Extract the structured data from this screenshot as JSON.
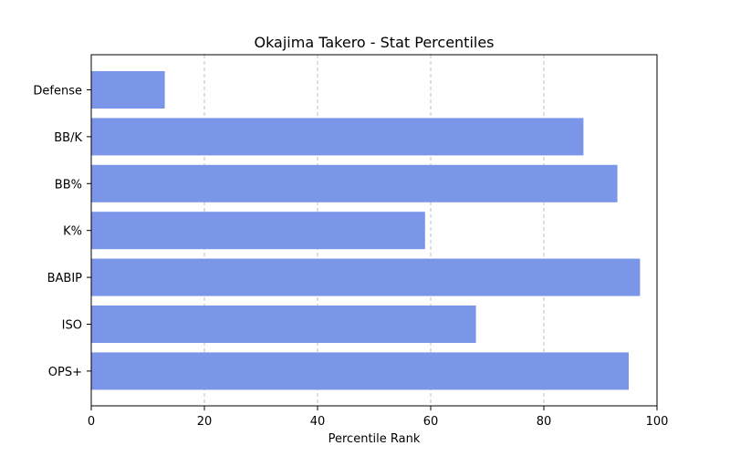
{
  "chart_data": {
    "type": "bar",
    "orientation": "horizontal",
    "title": "Okajima Takero - Stat Percentiles",
    "xlabel": "Percentile Rank",
    "ylabel": "",
    "xlim": [
      0,
      100
    ],
    "xticks": [
      0,
      20,
      40,
      60,
      80,
      100
    ],
    "categories": [
      "Defense",
      "BB/K",
      "BB%",
      "K%",
      "BABIP",
      "ISO",
      "OPS+"
    ],
    "values": [
      13,
      87,
      93,
      59,
      97,
      68,
      95
    ],
    "bar_color": "#7b96e8",
    "grid": "x-dashed",
    "legend": "none"
  }
}
